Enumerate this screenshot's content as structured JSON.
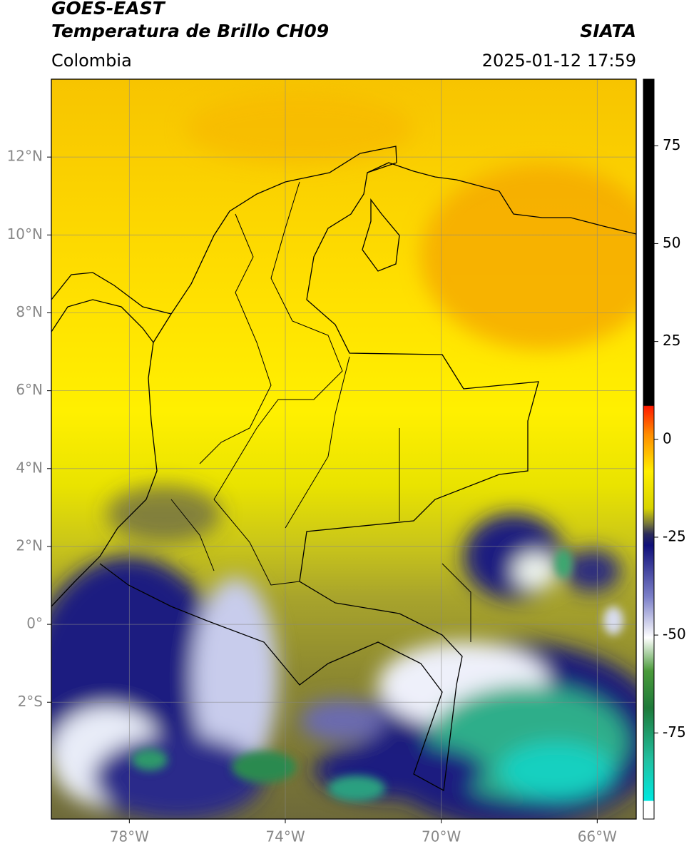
{
  "header": {
    "title": "GOES-EAST",
    "subtitle": "Temperatura de Brillo CH09",
    "source": "SIATA",
    "region": "Colombia",
    "datetime": "2025-01-12 17:59"
  },
  "map": {
    "xlim": [
      -80,
      -65
    ],
    "ylim": [
      -5,
      14
    ],
    "xticks": [
      {
        "value": -78,
        "label": "78°W"
      },
      {
        "value": -74,
        "label": "74°W"
      },
      {
        "value": -70,
        "label": "70°W"
      },
      {
        "value": -66,
        "label": "66°W"
      }
    ],
    "yticks": [
      {
        "value": 12,
        "label": "12°N"
      },
      {
        "value": 10,
        "label": "10°N"
      },
      {
        "value": 8,
        "label": "8°N"
      },
      {
        "value": 6,
        "label": "6°N"
      },
      {
        "value": 4,
        "label": "4°N"
      },
      {
        "value": 2,
        "label": "2°N"
      },
      {
        "value": 0,
        "label": "0°"
      },
      {
        "value": -2,
        "label": "2°S"
      }
    ],
    "grid": true
  },
  "colorbar": {
    "lim": [
      -97,
      92
    ],
    "ticks": [
      75,
      50,
      25,
      0,
      -25,
      -50,
      -75
    ]
  }
}
